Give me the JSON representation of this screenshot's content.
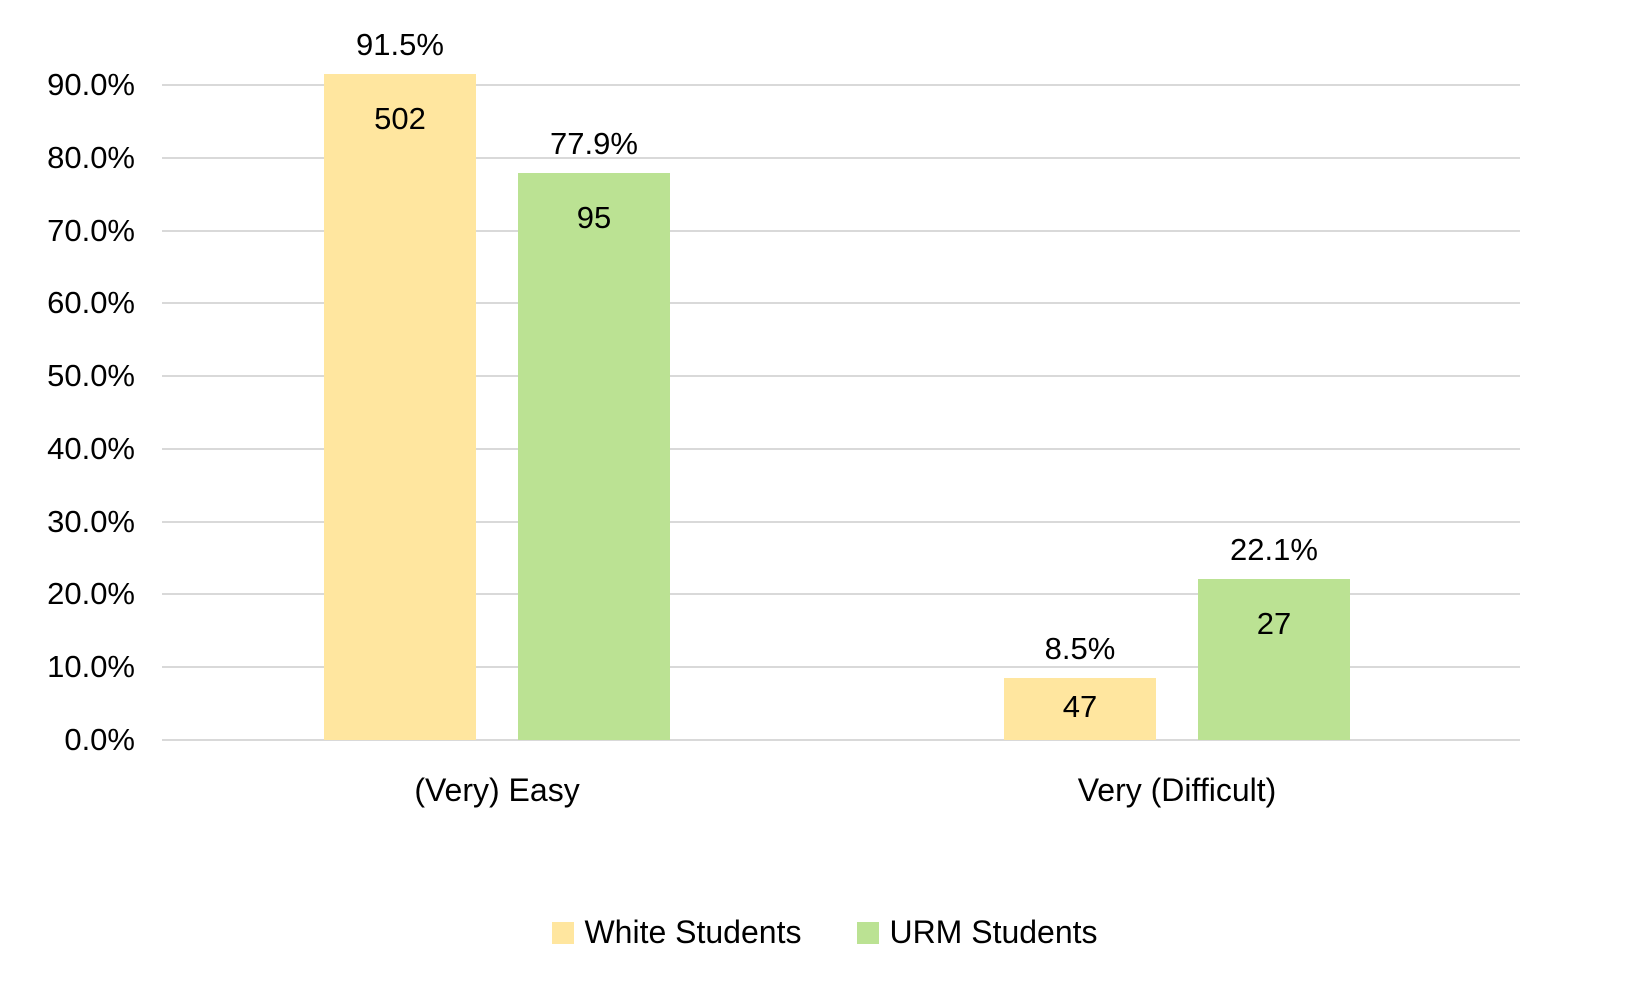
{
  "chart_data": {
    "type": "bar",
    "title": "",
    "xlabel": "",
    "ylabel": "",
    "categories": [
      "(Very) Easy",
      "Very (Difficult)"
    ],
    "series": [
      {
        "name": "White Students",
        "color": "#FFE69F",
        "values": [
          91.5,
          8.5
        ],
        "value_labels": [
          "91.5%",
          "8.5%"
        ],
        "counts": [
          502,
          47
        ]
      },
      {
        "name": "URM Students",
        "color": "#BBE293",
        "values": [
          77.9,
          22.1
        ],
        "value_labels": [
          "77.9%",
          "22.1%"
        ],
        "counts": [
          95,
          27
        ]
      }
    ],
    "ylim": [
      0,
      90
    ],
    "yticks": [
      "0.0%",
      "10.0%",
      "20.0%",
      "30.0%",
      "40.0%",
      "50.0%",
      "60.0%",
      "70.0%",
      "80.0%",
      "90.0%"
    ],
    "grid": true,
    "legend_position": "bottom"
  },
  "legend": {
    "items": [
      {
        "label": "White Students",
        "color": "#FFE69F"
      },
      {
        "label": "URM Students",
        "color": "#BBE293"
      }
    ]
  }
}
